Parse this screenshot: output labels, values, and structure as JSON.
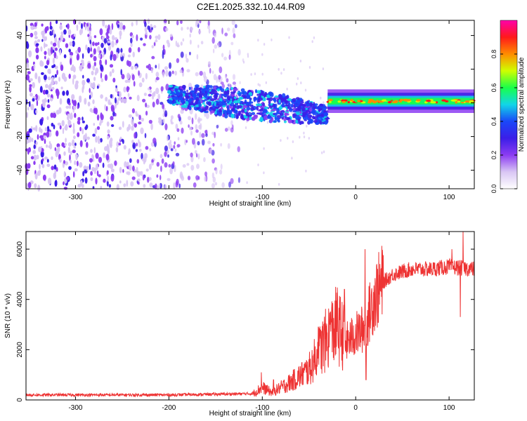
{
  "title": "C2E1.2025.332.10.44.R09",
  "chart_data": [
    {
      "type": "heatmap",
      "xlabel": "Height of straight line (km)",
      "ylabel": "Frequency (Hz)",
      "xlim": [
        -353,
        127
      ],
      "ylim": [
        -51,
        49
      ],
      "xticks": [
        -300,
        -200,
        -100,
        0,
        100
      ],
      "yticks": [
        -40,
        -20,
        0,
        20,
        40
      ],
      "colorbar": {
        "label": "Normalized spectral amplitude",
        "range": [
          0,
          1
        ],
        "ticks": [
          0.0,
          0.2,
          0.4,
          0.6,
          0.8
        ],
        "colormap": [
          "#ffffff",
          "#d9c6f4",
          "#8c3cf2",
          "#3b1ee8",
          "#1a48f8",
          "#12d6e8",
          "#19ff4a",
          "#cfff00",
          "#ff8c00",
          "#ff1a1a",
          "#ff00aa"
        ]
      },
      "features": [
        {
          "name": "noise",
          "x_range": [
            -353,
            -120
          ],
          "freq_range": [
            -51,
            49
          ],
          "amplitude": 0.2
        },
        {
          "name": "band",
          "x_range": [
            -200,
            -30
          ],
          "freq_center_start": 5,
          "freq_center_end": -7,
          "amplitude": 0.4
        },
        {
          "name": "tone",
          "x_range": [
            -30,
            127
          ],
          "freq_center": 1,
          "amplitude": 0.75
        }
      ]
    },
    {
      "type": "line",
      "xlabel": "Height of straight line (km)",
      "ylabel": "SNR (10 * v/v)",
      "xlim": [
        -353,
        127
      ],
      "ylim": [
        0,
        6700
      ],
      "xticks": [
        -300,
        -200,
        -100,
        0,
        100
      ],
      "yticks": [
        0,
        2000,
        4000,
        6000
      ],
      "color": "#ee3333",
      "trend": [
        {
          "x": -353,
          "y": 200
        },
        {
          "x": -200,
          "y": 200
        },
        {
          "x": -110,
          "y": 250
        },
        {
          "x": -100,
          "y": 500
        },
        {
          "x": -90,
          "y": 300
        },
        {
          "x": -70,
          "y": 700
        },
        {
          "x": -50,
          "y": 1200
        },
        {
          "x": -35,
          "y": 2200
        },
        {
          "x": -20,
          "y": 3000
        },
        {
          "x": -10,
          "y": 2300
        },
        {
          "x": 0,
          "y": 2600
        },
        {
          "x": 10,
          "y": 2900
        },
        {
          "x": 20,
          "y": 4100
        },
        {
          "x": 30,
          "y": 4700
        },
        {
          "x": 40,
          "y": 5000
        },
        {
          "x": 60,
          "y": 5200
        },
        {
          "x": 80,
          "y": 5200
        },
        {
          "x": 100,
          "y": 5300
        },
        {
          "x": 127,
          "y": 5200
        }
      ],
      "spikes": [
        {
          "x": -101,
          "y": 1100
        },
        {
          "x": -88,
          "y": 800
        },
        {
          "x": -40,
          "y": 2900
        },
        {
          "x": -27,
          "y": 3500
        },
        {
          "x": -17,
          "y": 3300
        },
        {
          "x": -12,
          "y": 4400
        },
        {
          "x": 10,
          "y": 6000
        },
        {
          "x": 11,
          "y": 800
        },
        {
          "x": 103,
          "y": 6000
        },
        {
          "x": 112,
          "y": 3300
        },
        {
          "x": 115,
          "y": 6700
        }
      ]
    }
  ]
}
